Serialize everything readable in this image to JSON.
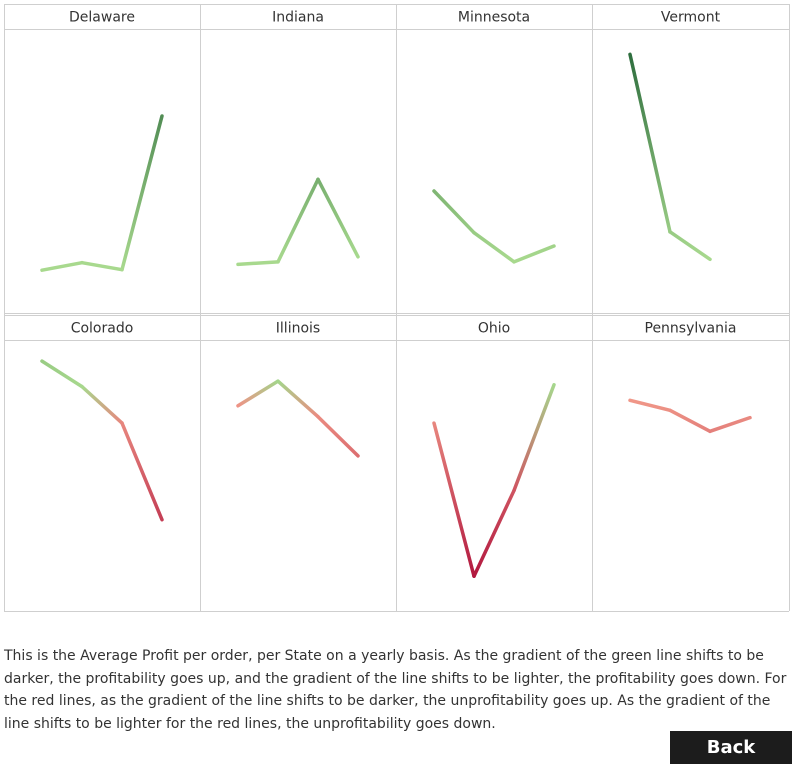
{
  "chart_data": {
    "type": "line",
    "grid": true,
    "legend": "none",
    "panels": [
      {
        "state": "Delaware",
        "sign": "profit",
        "values": [
          -0.75,
          -0.3,
          -0.72,
          8.5
        ]
      },
      {
        "state": "Indiana",
        "sign": "profit",
        "values": [
          -0.4,
          -0.25,
          4.7,
          0.05
        ]
      },
      {
        "state": "Minnesota",
        "sign": "profit",
        "values": [
          4.0,
          1.5,
          -0.25,
          0.7
        ]
      },
      {
        "state": "Vermont",
        "sign": "profit",
        "values": [
          12.2,
          1.55,
          -0.1
        ]
      },
      {
        "state": "Colorado",
        "sign": "mixed",
        "values": [
          1.5,
          0.1,
          -1.9,
          -7.2
        ]
      },
      {
        "state": "Illinois",
        "sign": "loss",
        "values": [
          -0.95,
          0.4,
          -1.55,
          -3.7
        ]
      },
      {
        "state": "Ohio",
        "sign": "loss",
        "values": [
          -1.9,
          -10.3,
          -5.6,
          0.2
        ]
      },
      {
        "state": "Pennsylvania",
        "sign": "loss",
        "values": [
          -0.65,
          -1.2,
          -2.35,
          -1.6
        ]
      }
    ]
  },
  "description": "This is the Average Profit per order, per State on a yearly basis. As the gradient of the green line shifts to be darker, the profitability goes up, and the gradient of the line shifts to be lighter, the profitability goes down. For the red lines, as the gradient of the line shifts to be darker, the unprofitability goes up. As the gradient of the line shifts to be lighter for the red lines, the unprofitability goes down.",
  "back_button": {
    "label": "Back"
  },
  "colors": {
    "profit_light": "#a8d98e",
    "profit_dark": "#2e6e3e",
    "loss_light": "#f4a08d",
    "loss_dark": "#b2183f",
    "grid_line": "#cfcfcf",
    "background": "#ffffff"
  }
}
